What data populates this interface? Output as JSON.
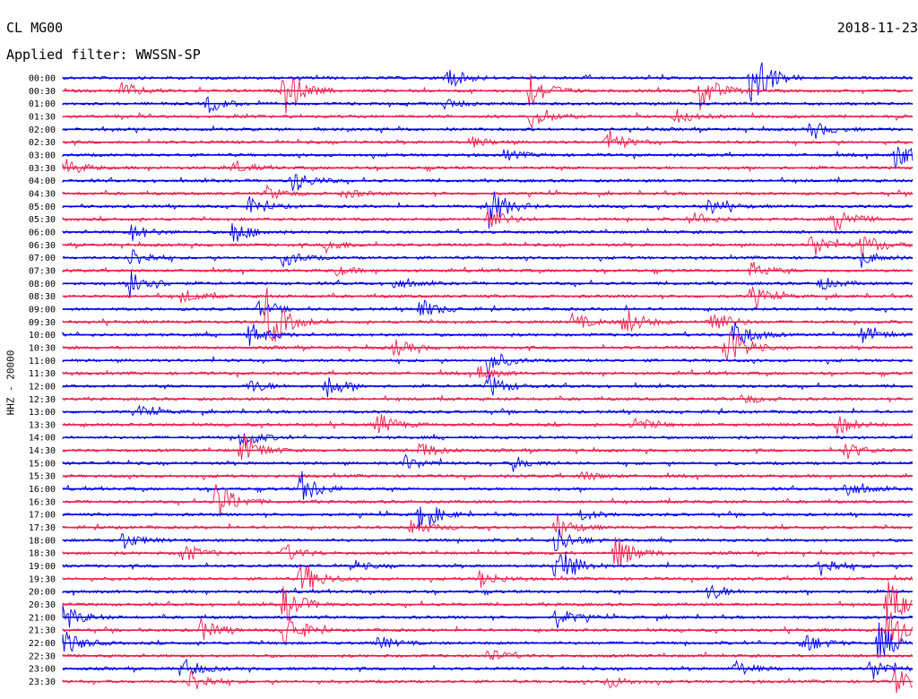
{
  "header": {
    "station": "CL MG00",
    "date": "2018-11-23",
    "filter": "Applied filter: WWSSN-SP"
  },
  "chart_data": {
    "type": "line",
    "title": "CL MG00",
    "subtitle": "Applied filter: WWSSN-SP",
    "ylabel": "HHZ - 20000",
    "row_colors": [
      "#0000ee",
      "#ee1e4c"
    ],
    "time_labels": [
      "00:00",
      "00:30",
      "01:00",
      "01:30",
      "02:00",
      "02:30",
      "03:00",
      "03:30",
      "04:00",
      "04:30",
      "05:00",
      "05:30",
      "06:00",
      "06:30",
      "07:00",
      "07:30",
      "08:00",
      "08:30",
      "09:00",
      "09:30",
      "10:00",
      "10:30",
      "11:00",
      "11:30",
      "12:00",
      "12:30",
      "13:00",
      "13:30",
      "14:00",
      "14:30",
      "15:00",
      "15:30",
      "16:00",
      "16:30",
      "17:00",
      "17:30",
      "18:00",
      "18:30",
      "19:00",
      "19:30",
      "20:00",
      "20:30",
      "21:00",
      "21:30",
      "22:00",
      "22:30",
      "23:00",
      "23:30"
    ],
    "events": [
      {
        "row": 0,
        "t": 0.45,
        "amp": 14
      },
      {
        "row": 0,
        "t": 0.81,
        "amp": 40
      },
      {
        "row": 1,
        "t": 0.26,
        "amp": 28
      },
      {
        "row": 1,
        "t": 0.55,
        "amp": 22
      },
      {
        "row": 1,
        "t": 0.75,
        "amp": 22
      },
      {
        "row": 1,
        "t": 0.07,
        "amp": 10
      },
      {
        "row": 2,
        "t": 0.17,
        "amp": 10
      },
      {
        "row": 2,
        "t": 0.45,
        "amp": 6
      },
      {
        "row": 3,
        "t": 0.55,
        "amp": 14
      },
      {
        "row": 3,
        "t": 0.72,
        "amp": 8
      },
      {
        "row": 4,
        "t": 0.88,
        "amp": 10
      },
      {
        "row": 5,
        "t": 0.64,
        "amp": 14
      },
      {
        "row": 5,
        "t": 0.48,
        "amp": 6
      },
      {
        "row": 6,
        "t": 0.98,
        "amp": 16
      },
      {
        "row": 6,
        "t": 0.52,
        "amp": 6
      },
      {
        "row": 7,
        "t": 0.0,
        "amp": 12
      },
      {
        "row": 7,
        "t": 0.2,
        "amp": 6
      },
      {
        "row": 8,
        "t": 0.27,
        "amp": 14
      },
      {
        "row": 9,
        "t": 0.24,
        "amp": 8
      },
      {
        "row": 9,
        "t": 0.33,
        "amp": 6
      },
      {
        "row": 10,
        "t": 0.5,
        "amp": 26
      },
      {
        "row": 10,
        "t": 0.22,
        "amp": 10
      },
      {
        "row": 10,
        "t": 0.76,
        "amp": 10
      },
      {
        "row": 11,
        "t": 0.5,
        "amp": 14
      },
      {
        "row": 11,
        "t": 0.74,
        "amp": 8
      },
      {
        "row": 11,
        "t": 0.91,
        "amp": 16
      },
      {
        "row": 12,
        "t": 0.2,
        "amp": 14
      },
      {
        "row": 12,
        "t": 0.08,
        "amp": 10
      },
      {
        "row": 13,
        "t": 0.88,
        "amp": 16
      },
      {
        "row": 13,
        "t": 0.94,
        "amp": 14
      },
      {
        "row": 13,
        "t": 0.31,
        "amp": 8
      },
      {
        "row": 14,
        "t": 0.26,
        "amp": 10
      },
      {
        "row": 14,
        "t": 0.08,
        "amp": 12
      },
      {
        "row": 14,
        "t": 0.94,
        "amp": 8
      },
      {
        "row": 15,
        "t": 0.81,
        "amp": 10
      },
      {
        "row": 15,
        "t": 0.32,
        "amp": 6
      },
      {
        "row": 16,
        "t": 0.08,
        "amp": 20
      },
      {
        "row": 16,
        "t": 0.39,
        "amp": 6
      },
      {
        "row": 16,
        "t": 0.89,
        "amp": 8
      },
      {
        "row": 17,
        "t": 0.14,
        "amp": 8
      },
      {
        "row": 17,
        "t": 0.81,
        "amp": 12
      },
      {
        "row": 18,
        "t": 0.23,
        "amp": 8
      },
      {
        "row": 18,
        "t": 0.42,
        "amp": 12
      },
      {
        "row": 19,
        "t": 0.24,
        "amp": 38
      },
      {
        "row": 19,
        "t": 0.66,
        "amp": 18
      },
      {
        "row": 19,
        "t": 0.76,
        "amp": 18
      },
      {
        "row": 19,
        "t": 0.6,
        "amp": 10
      },
      {
        "row": 20,
        "t": 0.22,
        "amp": 14
      },
      {
        "row": 20,
        "t": 0.79,
        "amp": 18
      },
      {
        "row": 20,
        "t": 0.94,
        "amp": 10
      },
      {
        "row": 21,
        "t": 0.78,
        "amp": 30
      },
      {
        "row": 21,
        "t": 0.39,
        "amp": 10
      },
      {
        "row": 22,
        "t": 0.5,
        "amp": 14
      },
      {
        "row": 23,
        "t": 0.49,
        "amp": 8
      },
      {
        "row": 24,
        "t": 0.31,
        "amp": 14
      },
      {
        "row": 24,
        "t": 0.5,
        "amp": 14
      },
      {
        "row": 24,
        "t": 0.22,
        "amp": 8
      },
      {
        "row": 25,
        "t": 0.8,
        "amp": 6
      },
      {
        "row": 26,
        "t": 0.09,
        "amp": 6
      },
      {
        "row": 27,
        "t": 0.37,
        "amp": 14
      },
      {
        "row": 27,
        "t": 0.67,
        "amp": 10
      },
      {
        "row": 27,
        "t": 0.91,
        "amp": 12
      },
      {
        "row": 28,
        "t": 0.21,
        "amp": 12
      },
      {
        "row": 29,
        "t": 0.21,
        "amp": 20
      },
      {
        "row": 29,
        "t": 0.42,
        "amp": 10
      },
      {
        "row": 29,
        "t": 0.92,
        "amp": 10
      },
      {
        "row": 30,
        "t": 0.4,
        "amp": 10
      },
      {
        "row": 30,
        "t": 0.53,
        "amp": 8
      },
      {
        "row": 31,
        "t": 0.61,
        "amp": 6
      },
      {
        "row": 32,
        "t": 0.28,
        "amp": 20
      },
      {
        "row": 32,
        "t": 0.92,
        "amp": 10
      },
      {
        "row": 33,
        "t": 0.18,
        "amp": 26
      },
      {
        "row": 34,
        "t": 0.42,
        "amp": 20
      },
      {
        "row": 34,
        "t": 0.61,
        "amp": 6
      },
      {
        "row": 35,
        "t": 0.41,
        "amp": 10
      },
      {
        "row": 35,
        "t": 0.58,
        "amp": 14
      },
      {
        "row": 36,
        "t": 0.07,
        "amp": 10
      },
      {
        "row": 36,
        "t": 0.58,
        "amp": 16
      },
      {
        "row": 37,
        "t": 0.14,
        "amp": 12
      },
      {
        "row": 37,
        "t": 0.26,
        "amp": 10
      },
      {
        "row": 37,
        "t": 0.65,
        "amp": 22
      },
      {
        "row": 38,
        "t": 0.58,
        "amp": 30
      },
      {
        "row": 38,
        "t": 0.89,
        "amp": 14
      },
      {
        "row": 38,
        "t": 0.34,
        "amp": 6
      },
      {
        "row": 39,
        "t": 0.28,
        "amp": 22
      },
      {
        "row": 39,
        "t": 0.49,
        "amp": 10
      },
      {
        "row": 40,
        "t": 0.76,
        "amp": 10
      },
      {
        "row": 41,
        "t": 0.26,
        "amp": 22
      },
      {
        "row": 41,
        "t": 0.97,
        "amp": 28
      },
      {
        "row": 42,
        "t": 0.58,
        "amp": 12
      },
      {
        "row": 42,
        "t": 0.0,
        "amp": 16
      },
      {
        "row": 43,
        "t": 0.16,
        "amp": 14
      },
      {
        "row": 43,
        "t": 0.26,
        "amp": 24
      },
      {
        "row": 43,
        "t": 0.97,
        "amp": 30
      },
      {
        "row": 44,
        "t": 0.0,
        "amp": 16
      },
      {
        "row": 44,
        "t": 0.37,
        "amp": 8
      },
      {
        "row": 44,
        "t": 0.87,
        "amp": 14
      },
      {
        "row": 44,
        "t": 0.96,
        "amp": 22
      },
      {
        "row": 45,
        "t": 0.5,
        "amp": 8
      },
      {
        "row": 46,
        "t": 0.14,
        "amp": 12
      },
      {
        "row": 46,
        "t": 0.79,
        "amp": 10
      },
      {
        "row": 46,
        "t": 0.95,
        "amp": 14
      },
      {
        "row": 47,
        "t": 0.15,
        "amp": 14
      },
      {
        "row": 47,
        "t": 0.64,
        "amp": 8
      },
      {
        "row": 47,
        "t": 0.98,
        "amp": 16
      }
    ]
  }
}
